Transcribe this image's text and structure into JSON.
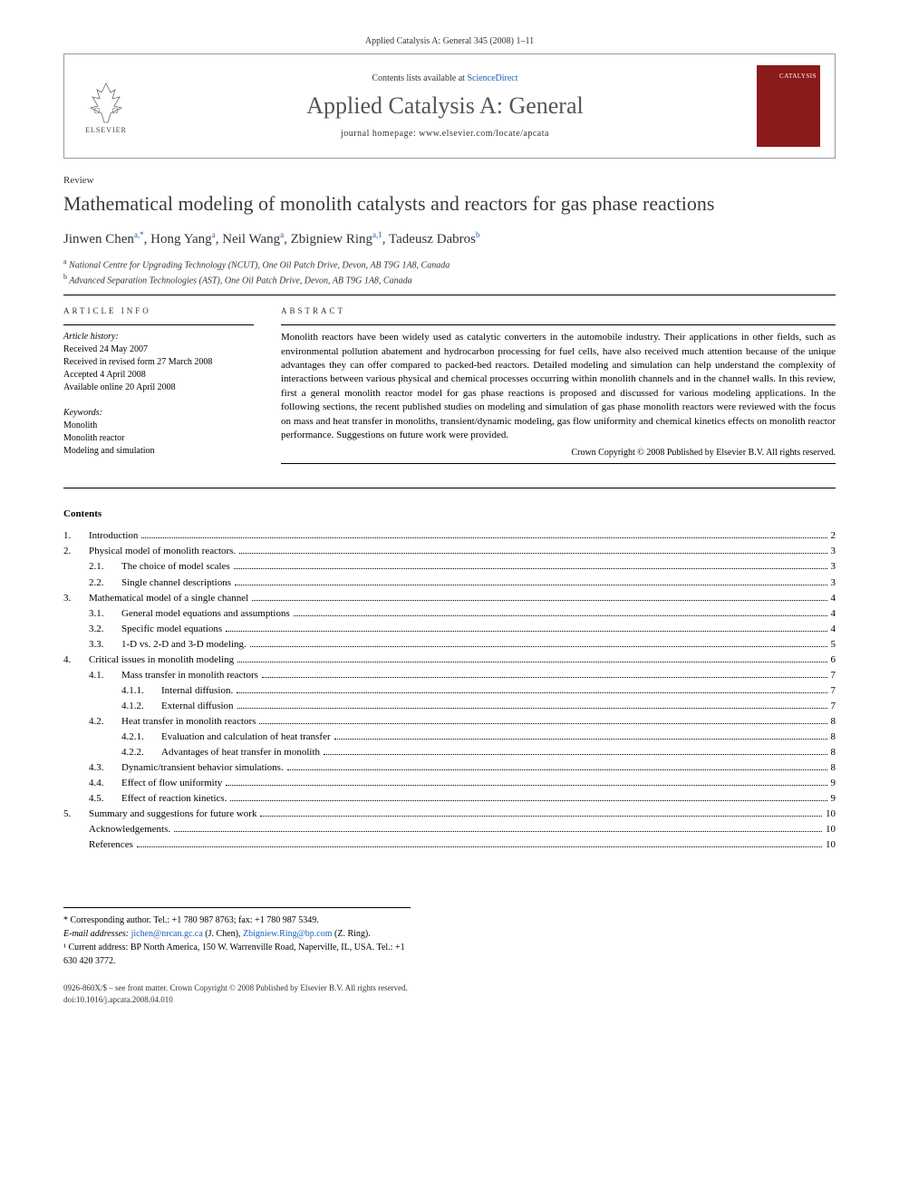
{
  "journal_ref": "Applied Catalysis A: General 345 (2008) 1–11",
  "header": {
    "contents_prefix": "Contents lists available at ",
    "contents_link": "ScienceDirect",
    "journal_title": "Applied Catalysis A: General",
    "homepage": "journal homepage: www.elsevier.com/locate/apcata",
    "publisher": "ELSEVIER",
    "cover_label": "CATALYSIS"
  },
  "article": {
    "type": "Review",
    "title": "Mathematical modeling of monolith catalysts and reactors for gas phase reactions",
    "authors_html_parts": {
      "a1_name": "Jinwen Chen",
      "a1_sup": "a,*",
      "a2_name": "Hong Yang",
      "a2_sup": "a",
      "a3_name": "Neil Wang",
      "a3_sup": "a",
      "a4_name": "Zbigniew Ring",
      "a4_sup": "a,1",
      "a5_name": "Tadeusz Dabros",
      "a5_sup": "b"
    },
    "affiliations": {
      "a": "National Centre for Upgrading Technology (NCUT), One Oil Patch Drive, Devon, AB T9G 1A8, Canada",
      "b": "Advanced Separation Technologies (AST), One Oil Patch Drive, Devon, AB T9G 1A8, Canada"
    }
  },
  "info": {
    "label": "ARTICLE INFO",
    "history_label": "Article history:",
    "history": [
      "Received 24 May 2007",
      "Received in revised form 27 March 2008",
      "Accepted 4 April 2008",
      "Available online 20 April 2008"
    ],
    "keywords_label": "Keywords:",
    "keywords": [
      "Monolith",
      "Monolith reactor",
      "Modeling and simulation"
    ]
  },
  "abstract": {
    "label": "ABSTRACT",
    "text": "Monolith reactors have been widely used as catalytic converters in the automobile industry. Their applications in other fields, such as environmental pollution abatement and hydrocarbon processing for fuel cells, have also received much attention because of the unique advantages they can offer compared to packed-bed reactors. Detailed modeling and simulation can help understand the complexity of interactions between various physical and chemical processes occurring within monolith channels and in the channel walls. In this review, first a general monolith reactor model for gas phase reactions is proposed and discussed for various modeling applications. In the following sections, the recent published studies on modeling and simulation of gas phase monolith reactors were reviewed with the focus on mass and heat transfer in monoliths, transient/dynamic modeling, gas flow uniformity and chemical kinetics effects on monolith reactor performance. Suggestions on future work were provided.",
    "copyright": "Crown Copyright © 2008 Published by Elsevier B.V. All rights reserved."
  },
  "contents": {
    "heading": "Contents",
    "items": [
      {
        "num": "1.",
        "label": "Introduction",
        "page": "2",
        "indent": 0
      },
      {
        "num": "2.",
        "label": "Physical model of monolith reactors.",
        "page": "3",
        "indent": 0
      },
      {
        "num": "2.1.",
        "label": "The choice of model scales",
        "page": "3",
        "indent": 1
      },
      {
        "num": "2.2.",
        "label": "Single channel descriptions",
        "page": "3",
        "indent": 1
      },
      {
        "num": "3.",
        "label": "Mathematical model of a single channel",
        "page": "4",
        "indent": 0
      },
      {
        "num": "3.1.",
        "label": "General model equations and assumptions",
        "page": "4",
        "indent": 1
      },
      {
        "num": "3.2.",
        "label": "Specific model equations",
        "page": "4",
        "indent": 1
      },
      {
        "num": "3.3.",
        "label": "1-D vs. 2-D and 3-D modeling.",
        "page": "5",
        "indent": 1
      },
      {
        "num": "4.",
        "label": "Critical issues in monolith modeling",
        "page": "6",
        "indent": 0
      },
      {
        "num": "4.1.",
        "label": "Mass transfer in monolith reactors",
        "page": "7",
        "indent": 1
      },
      {
        "num": "4.1.1.",
        "label": "Internal diffusion.",
        "page": "7",
        "indent": 2
      },
      {
        "num": "4.1.2.",
        "label": "External diffusion",
        "page": "7",
        "indent": 2
      },
      {
        "num": "4.2.",
        "label": "Heat transfer in monolith reactors",
        "page": "8",
        "indent": 1
      },
      {
        "num": "4.2.1.",
        "label": "Evaluation and calculation of heat transfer",
        "page": "8",
        "indent": 2
      },
      {
        "num": "4.2.2.",
        "label": "Advantages of heat transfer in monolith",
        "page": "8",
        "indent": 2
      },
      {
        "num": "4.3.",
        "label": "Dynamic/transient behavior simulations.",
        "page": "8",
        "indent": 1
      },
      {
        "num": "4.4.",
        "label": "Effect of flow uniformity",
        "page": "9",
        "indent": 1
      },
      {
        "num": "4.5.",
        "label": "Effect of reaction kinetics.",
        "page": "9",
        "indent": 1
      },
      {
        "num": "5.",
        "label": "Summary and suggestions for future work",
        "page": "10",
        "indent": 0
      },
      {
        "num": "",
        "label": "Acknowledgements.",
        "page": "10",
        "indent": 0
      },
      {
        "num": "",
        "label": "References",
        "page": "10",
        "indent": 0
      }
    ]
  },
  "footnotes": {
    "corr": "* Corresponding author. Tel.: +1 780 987 8763; fax: +1 780 987 5349.",
    "email_label": "E-mail addresses:",
    "email1": "jichen@nrcan.gc.ca",
    "email1_who": " (J. Chen), ",
    "email2": "Zbigniew.Ring@bp.com",
    "email2_who": " (Z. Ring).",
    "note1": "¹ Current address: BP North America, 150 W. Warrenville Road, Naperville, IL, USA. Tel.: +1 630 420 3772."
  },
  "bottom": {
    "issn": "0926-860X/$ – see front matter. Crown Copyright © 2008 Published by Elsevier B.V. All rights reserved.",
    "doi": "doi:10.1016/j.apcata.2008.04.010"
  },
  "colors": {
    "link": "#1a5fb4",
    "cover": "#8b1a1a",
    "title_gray": "#555555"
  }
}
